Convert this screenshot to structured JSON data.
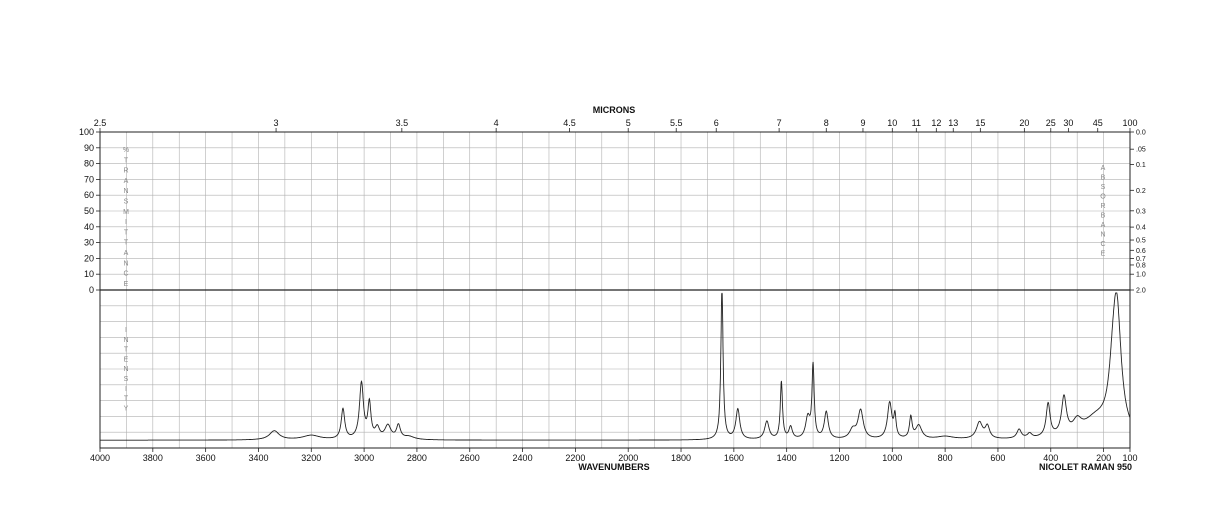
{
  "chart_data": {
    "type": "line",
    "title": "",
    "top_axis": {
      "label": "MICRONS",
      "ticks": [
        "2.5",
        "3",
        "3.5",
        "4",
        "4.5",
        "5",
        "5.5",
        "6",
        "7",
        "8",
        "9",
        "10",
        "11",
        "12",
        "13",
        "15",
        "20",
        "25",
        "30",
        "45",
        "100"
      ]
    },
    "bottom_axis": {
      "label": "WAVENUMBERS",
      "ticks": [
        4000,
        3800,
        3600,
        3400,
        3200,
        3000,
        2800,
        2600,
        2400,
        2200,
        2000,
        1800,
        1600,
        1400,
        1200,
        1000,
        800,
        600,
        400,
        200,
        100
      ],
      "xlim": [
        4000,
        100
      ]
    },
    "left_axis": {
      "ticks": [
        100,
        90,
        80,
        70,
        60,
        50,
        40,
        30,
        20,
        10,
        0
      ],
      "transmittance_letters": [
        "%",
        "T",
        "R",
        "A",
        "N",
        "S",
        "M",
        "I",
        "T",
        "T",
        "A",
        "N",
        "C",
        "E"
      ],
      "intensity_letters": [
        "I",
        "N",
        "T",
        "E",
        "N",
        "S",
        "I",
        "T",
        "Y"
      ]
    },
    "right_axis": {
      "ticks": [
        "0.0",
        ".05",
        "0.1",
        "0.2",
        "0.3",
        "0.4",
        "0.5",
        "0.6",
        "0.7",
        "0.8",
        "1.0",
        "2.0"
      ],
      "absorbance_letters": [
        "A",
        "B",
        "S",
        "O",
        "R",
        "B",
        "A",
        "N",
        "C",
        "E"
      ]
    },
    "instrument_label": "NICOLET RAMAN 950",
    "series": [
      {
        "baseline": 0.025,
        "peaks": [
          {
            "x": 3340,
            "y": 0.06,
            "w": 22
          },
          {
            "x": 3200,
            "y": 0.03,
            "w": 40
          },
          {
            "x": 3080,
            "y": 0.2,
            "w": 8
          },
          {
            "x": 3010,
            "y": 0.37,
            "w": 9
          },
          {
            "x": 2980,
            "y": 0.23,
            "w": 7
          },
          {
            "x": 2950,
            "y": 0.07,
            "w": 10
          },
          {
            "x": 2910,
            "y": 0.09,
            "w": 14
          },
          {
            "x": 2870,
            "y": 0.09,
            "w": 9
          },
          {
            "x": 2830,
            "y": 0.02,
            "w": 25
          },
          {
            "x": 1645,
            "y": 1.0,
            "w": 5
          },
          {
            "x": 1585,
            "y": 0.2,
            "w": 9
          },
          {
            "x": 1475,
            "y": 0.12,
            "w": 10
          },
          {
            "x": 1420,
            "y": 0.38,
            "w": 5
          },
          {
            "x": 1385,
            "y": 0.08,
            "w": 8
          },
          {
            "x": 1320,
            "y": 0.14,
            "w": 10
          },
          {
            "x": 1300,
            "y": 0.48,
            "w": 5
          },
          {
            "x": 1250,
            "y": 0.18,
            "w": 9
          },
          {
            "x": 1150,
            "y": 0.06,
            "w": 14
          },
          {
            "x": 1120,
            "y": 0.19,
            "w": 12
          },
          {
            "x": 1010,
            "y": 0.24,
            "w": 10
          },
          {
            "x": 990,
            "y": 0.14,
            "w": 5
          },
          {
            "x": 930,
            "y": 0.14,
            "w": 6
          },
          {
            "x": 900,
            "y": 0.09,
            "w": 14
          },
          {
            "x": 800,
            "y": 0.02,
            "w": 40
          },
          {
            "x": 670,
            "y": 0.11,
            "w": 14
          },
          {
            "x": 640,
            "y": 0.08,
            "w": 10
          },
          {
            "x": 520,
            "y": 0.06,
            "w": 10
          },
          {
            "x": 480,
            "y": 0.03,
            "w": 10
          },
          {
            "x": 410,
            "y": 0.22,
            "w": 9
          },
          {
            "x": 350,
            "y": 0.25,
            "w": 11
          },
          {
            "x": 300,
            "y": 0.08,
            "w": 20
          },
          {
            "x": 230,
            "y": 0.12,
            "w": 60
          },
          {
            "x": 165,
            "y": 0.22,
            "w": 18
          },
          {
            "x": 150,
            "y": 0.8,
            "w": 20
          }
        ]
      }
    ]
  }
}
